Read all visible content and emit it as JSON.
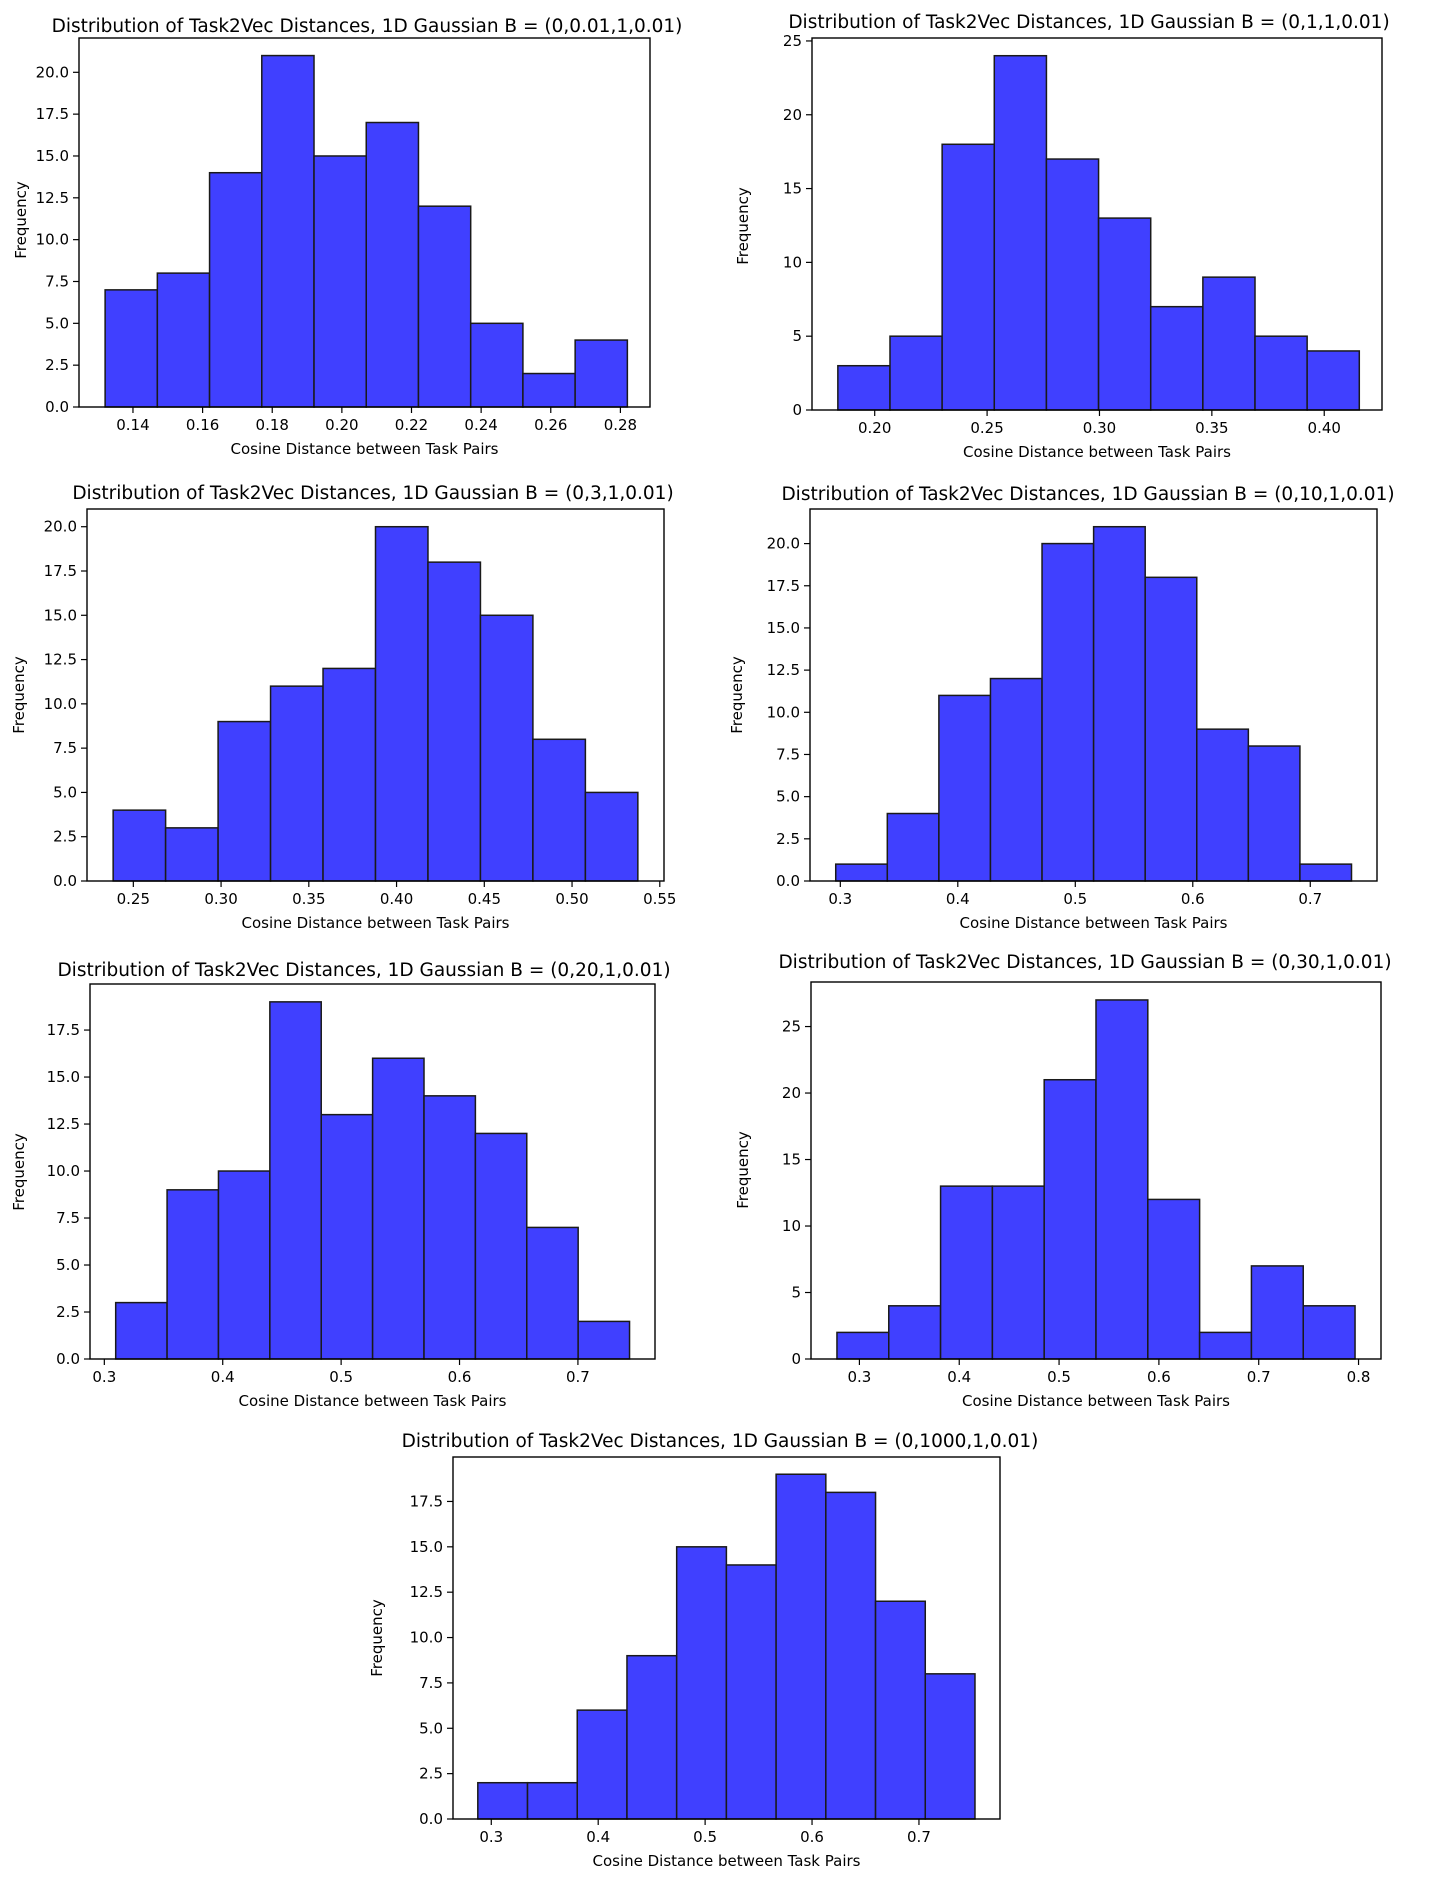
{
  "chart_data": [
    {
      "type": "bar",
      "title": "Distribution of Task2Vec Distances, 1D Gaussian B = (0,0.01,1,0.01)",
      "xlabel": "Cosine Distance between Task Pairs",
      "ylabel": "Frequency",
      "xlim": [
        0.1245,
        0.2885
      ],
      "ylim": [
        0,
        22.05
      ],
      "xticks": [
        0.14,
        0.16,
        0.18,
        0.2,
        0.22,
        0.24,
        0.26,
        0.28
      ],
      "xtick_labels": [
        "0.14",
        "0.16",
        "0.18",
        "0.20",
        "0.22",
        "0.24",
        "0.26",
        "0.28"
      ],
      "yticks": [
        0,
        2.5,
        5,
        7.5,
        10,
        12.5,
        15,
        17.5,
        20
      ],
      "ytick_labels": [
        "0.0",
        "2.5",
        "5.0",
        "7.5",
        "10.0",
        "12.5",
        "15.0",
        "17.5",
        "20.0"
      ],
      "bin_edges": [
        0.132,
        0.147,
        0.162,
        0.177,
        0.192,
        0.207,
        0.222,
        0.237,
        0.252,
        0.267,
        0.282
      ],
      "values": [
        7,
        8,
        14,
        21,
        15,
        17,
        12,
        5,
        2,
        4
      ],
      "bar_color": "#4040ff",
      "edge_color": "#1a1a1a"
    },
    {
      "type": "bar",
      "title": "Distribution of Task2Vec Distances, 1D Gaussian B = (0,1,1,0.01)",
      "xlabel": "Cosine Distance between Task Pairs",
      "ylabel": "Frequency",
      "xlim": [
        0.1721,
        0.4257
      ],
      "ylim": [
        0,
        25.2
      ],
      "xticks": [
        0.2,
        0.25,
        0.3,
        0.35,
        0.4
      ],
      "xtick_labels": [
        "0.20",
        "0.25",
        "0.30",
        "0.35",
        "0.40"
      ],
      "yticks": [
        0,
        5,
        10,
        15,
        20,
        25
      ],
      "ytick_labels": [
        "0",
        "5",
        "10",
        "15",
        "20",
        "25"
      ],
      "bin_edges": [
        0.1836,
        0.2068,
        0.23,
        0.2532,
        0.2764,
        0.2996,
        0.3228,
        0.346,
        0.3692,
        0.3924,
        0.4156
      ],
      "values": [
        3,
        5,
        18,
        24,
        17,
        13,
        7,
        9,
        5,
        4
      ],
      "bar_color": "#4040ff",
      "edge_color": "#1a1a1a"
    },
    {
      "type": "bar",
      "title": "Distribution of Task2Vec Distances, 1D Gaussian B = (0,3,1,0.01)",
      "xlabel": "Cosine Distance between Task Pairs",
      "ylabel": "Frequency",
      "xlim": [
        0.2236,
        0.5524
      ],
      "ylim": [
        0,
        21
      ],
      "xticks": [
        0.25,
        0.3,
        0.35,
        0.4,
        0.45,
        0.5,
        0.55
      ],
      "xtick_labels": [
        "0.25",
        "0.30",
        "0.35",
        "0.40",
        "0.45",
        "0.50",
        "0.55"
      ],
      "yticks": [
        0,
        2.5,
        5,
        7.5,
        10,
        12.5,
        15,
        17.5,
        20
      ],
      "ytick_labels": [
        "0.0",
        "2.5",
        "5.0",
        "7.5",
        "10.0",
        "12.5",
        "15.0",
        "17.5",
        "20.0"
      ],
      "bin_edges": [
        0.2385,
        0.2684,
        0.2983,
        0.3282,
        0.3581,
        0.388,
        0.4179,
        0.4478,
        0.4777,
        0.5076,
        0.5375
      ],
      "values": [
        4,
        3,
        9,
        11,
        12,
        20,
        18,
        15,
        8,
        5
      ],
      "bar_color": "#4040ff",
      "edge_color": "#1a1a1a"
    },
    {
      "type": "bar",
      "title": "Distribution of Task2Vec Distances, 1D Gaussian B = (0,10,1,0.01)",
      "xlabel": "Cosine Distance between Task Pairs",
      "ylabel": "Frequency",
      "xlim": [
        0.2742,
        0.7568
      ],
      "ylim": [
        0,
        22.05
      ],
      "xticks": [
        0.3,
        0.4,
        0.5,
        0.6,
        0.7
      ],
      "xtick_labels": [
        "0.3",
        "0.4",
        "0.5",
        "0.6",
        "0.7"
      ],
      "yticks": [
        0,
        2.5,
        5,
        7.5,
        10,
        12.5,
        15,
        17.5,
        20
      ],
      "ytick_labels": [
        "0.0",
        "2.5",
        "5.0",
        "7.5",
        "10.0",
        "12.5",
        "15.0",
        "17.5",
        "20.0"
      ],
      "bin_edges": [
        0.2961,
        0.34,
        0.3839,
        0.4278,
        0.4717,
        0.5156,
        0.5595,
        0.6034,
        0.6473,
        0.6912,
        0.7351
      ],
      "values": [
        1,
        4,
        11,
        12,
        20,
        21,
        18,
        9,
        8,
        1
      ],
      "bar_color": "#4040ff",
      "edge_color": "#1a1a1a"
    },
    {
      "type": "bar",
      "title": "Distribution of Task2Vec Distances, 1D Gaussian B = (0,20,1,0.01)",
      "xlabel": "Cosine Distance between Task Pairs",
      "ylabel": "Frequency",
      "xlim": [
        0.2879,
        0.7651
      ],
      "ylim": [
        0,
        19.95
      ],
      "xticks": [
        0.3,
        0.4,
        0.5,
        0.6,
        0.7
      ],
      "xtick_labels": [
        "0.3",
        "0.4",
        "0.5",
        "0.6",
        "0.7"
      ],
      "yticks": [
        0,
        2.5,
        5,
        7.5,
        10,
        12.5,
        15,
        17.5
      ],
      "ytick_labels": [
        "0.0",
        "2.5",
        "5.0",
        "7.5",
        "10.0",
        "12.5",
        "15.0",
        "17.5"
      ],
      "bin_edges": [
        0.3096,
        0.353,
        0.3964,
        0.4398,
        0.4832,
        0.5266,
        0.57,
        0.6134,
        0.6568,
        0.7002,
        0.7436
      ],
      "values": [
        3,
        9,
        10,
        19,
        13,
        16,
        14,
        12,
        7,
        2
      ],
      "bar_color": "#4040ff",
      "edge_color": "#1a1a1a"
    },
    {
      "type": "bar",
      "title": "Distribution of Task2Vec Distances, 1D Gaussian B = (0,30,1,0.01)",
      "xlabel": "Cosine Distance between Task Pairs",
      "ylabel": "Frequency",
      "xlim": [
        0.2515,
        0.8225
      ],
      "ylim": [
        0,
        28.35
      ],
      "xticks": [
        0.3,
        0.4,
        0.5,
        0.6,
        0.7,
        0.8
      ],
      "xtick_labels": [
        "0.3",
        "0.4",
        "0.5",
        "0.6",
        "0.7",
        "0.8"
      ],
      "yticks": [
        0,
        5,
        10,
        15,
        20,
        25
      ],
      "ytick_labels": [
        "0",
        "5",
        "10",
        "15",
        "20",
        "25"
      ],
      "bin_edges": [
        0.2775,
        0.3294,
        0.3813,
        0.4332,
        0.4851,
        0.537,
        0.5889,
        0.6408,
        0.6927,
        0.7446,
        0.7965
      ],
      "values": [
        2,
        4,
        13,
        13,
        21,
        27,
        12,
        2,
        7,
        4
      ],
      "bar_color": "#4040ff",
      "edge_color": "#1a1a1a"
    },
    {
      "type": "bar",
      "title": "Distribution of Task2Vec Distances, 1D Gaussian B = (0,1000,1,0.01)",
      "xlabel": "Cosine Distance between Task Pairs",
      "ylabel": "Frequency",
      "xlim": [
        0.2642,
        0.7758
      ],
      "ylim": [
        0,
        19.95
      ],
      "xticks": [
        0.3,
        0.4,
        0.5,
        0.6,
        0.7
      ],
      "xtick_labels": [
        "0.3",
        "0.4",
        "0.5",
        "0.6",
        "0.7"
      ],
      "yticks": [
        0,
        2.5,
        5,
        7.5,
        10,
        12.5,
        15,
        17.5
      ],
      "ytick_labels": [
        "0.0",
        "2.5",
        "5.0",
        "7.5",
        "10.0",
        "12.5",
        "15.0",
        "17.5"
      ],
      "bin_edges": [
        0.2874,
        0.3339,
        0.3804,
        0.4269,
        0.4734,
        0.5199,
        0.5664,
        0.6129,
        0.6594,
        0.7059,
        0.7524
      ],
      "values": [
        2,
        2,
        6,
        9,
        15,
        14,
        19,
        18,
        12,
        8
      ],
      "bar_color": "#4040ff",
      "edge_color": "#1a1a1a"
    }
  ]
}
